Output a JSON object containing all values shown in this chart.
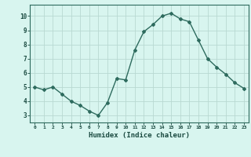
{
  "x": [
    0,
    1,
    2,
    3,
    4,
    5,
    6,
    7,
    8,
    9,
    10,
    11,
    12,
    13,
    14,
    15,
    16,
    17,
    18,
    19,
    20,
    21,
    22,
    23
  ],
  "y": [
    5.0,
    4.8,
    5.0,
    4.5,
    4.0,
    3.7,
    3.3,
    3.0,
    3.9,
    5.6,
    5.5,
    7.6,
    8.9,
    9.4,
    10.0,
    10.2,
    9.8,
    9.6,
    8.3,
    7.0,
    6.4,
    5.9,
    5.3,
    4.9
  ],
  "line_color": "#2e6b5e",
  "marker": "D",
  "marker_size": 2,
  "bg_color": "#d8f5ef",
  "grid_color": "#b8d9d2",
  "xlabel": "Humidex (Indice chaleur)",
  "xlabel_color": "#1a4a40",
  "tick_color": "#1a4a40",
  "ylim": [
    2.5,
    10.8
  ],
  "xlim": [
    -0.5,
    23.5
  ],
  "yticks": [
    3,
    4,
    5,
    6,
    7,
    8,
    9,
    10
  ],
  "xticks": [
    0,
    1,
    2,
    3,
    4,
    5,
    6,
    7,
    8,
    9,
    10,
    11,
    12,
    13,
    14,
    15,
    16,
    17,
    18,
    19,
    20,
    21,
    22,
    23
  ],
  "xtick_labels": [
    "0",
    "1",
    "2",
    "3",
    "4",
    "5",
    "6",
    "7",
    "8",
    "9",
    "10",
    "11",
    "12",
    "13",
    "14",
    "15",
    "16",
    "17",
    "18",
    "19",
    "20",
    "21",
    "22",
    "23"
  ],
  "spine_color": "#2e6b5e",
  "linewidth": 1.0
}
